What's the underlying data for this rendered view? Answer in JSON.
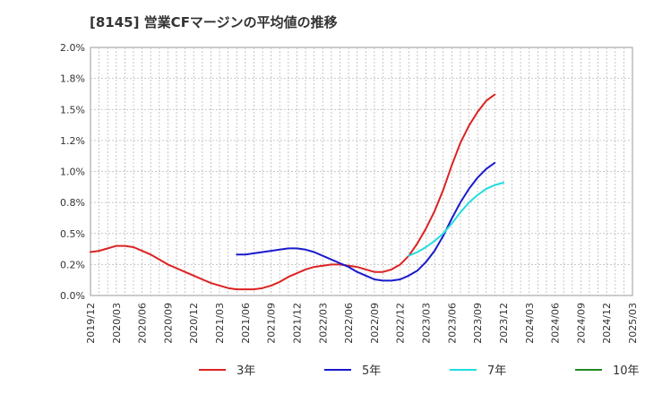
{
  "chart_data": {
    "type": "line",
    "title": "[8145]  営業CFマージンの平均値の推移",
    "xlabel": "",
    "ylabel": "",
    "ylim": [
      0,
      2.0
    ],
    "y_ticks": [
      0,
      0.25,
      0.5,
      0.75,
      1.0,
      1.25,
      1.5,
      1.75,
      2.0
    ],
    "y_tick_labels": [
      "0.0%",
      "0.2%",
      "0.5%",
      "0.8%",
      "1.0%",
      "1.2%",
      "1.5%",
      "1.8%",
      "2.0%"
    ],
    "x_tick_labels": [
      "2019/12",
      "2020/03",
      "2020/06",
      "2020/09",
      "2020/12",
      "2021/03",
      "2021/06",
      "2021/09",
      "2021/12",
      "2022/03",
      "2022/06",
      "2022/09",
      "2022/12",
      "2023/03",
      "2023/06",
      "2023/09",
      "2023/12",
      "2024/03",
      "2024/06",
      "2024/09",
      "2024/12",
      "2025/03"
    ],
    "grid": true,
    "legend_position": "bottom",
    "series": [
      {
        "name": "3年",
        "color": "#dd2222",
        "start_index": 0,
        "values": [
          0.35,
          0.36,
          0.38,
          0.4,
          0.4,
          0.39,
          0.36,
          0.33,
          0.29,
          0.25,
          0.22,
          0.19,
          0.16,
          0.13,
          0.1,
          0.08,
          0.06,
          0.05,
          0.05,
          0.05,
          0.06,
          0.08,
          0.11,
          0.15,
          0.18,
          0.21,
          0.23,
          0.24,
          0.25,
          0.25,
          0.24,
          0.23,
          0.21,
          0.19,
          0.19,
          0.21,
          0.25,
          0.32,
          0.42,
          0.54,
          0.68,
          0.85,
          1.05,
          1.23,
          1.37,
          1.48,
          1.57,
          1.62
        ]
      },
      {
        "name": "5年",
        "color": "#1a1acc",
        "start_index": 17,
        "values": [
          0.33,
          0.33,
          0.34,
          0.35,
          0.36,
          0.37,
          0.38,
          0.38,
          0.37,
          0.35,
          0.32,
          0.29,
          0.26,
          0.23,
          0.19,
          0.16,
          0.13,
          0.12,
          0.12,
          0.13,
          0.16,
          0.2,
          0.27,
          0.36,
          0.48,
          0.62,
          0.75,
          0.86,
          0.95,
          1.02,
          1.07
        ]
      },
      {
        "name": "7年",
        "color": "#22dddd",
        "start_index": 37,
        "values": [
          0.32,
          0.35,
          0.39,
          0.44,
          0.5,
          0.58,
          0.67,
          0.75,
          0.81,
          0.86,
          0.89,
          0.91
        ]
      },
      {
        "name": "10年",
        "color": "#228822",
        "start_index": 0,
        "values": []
      }
    ]
  }
}
